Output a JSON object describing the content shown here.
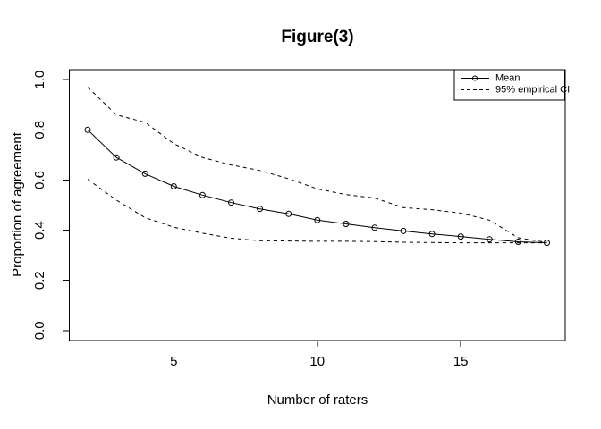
{
  "chart_data": {
    "type": "line",
    "title": "Figure(3)",
    "xlabel": "Number of raters",
    "ylabel": "Proportion of agreement",
    "x": [
      2,
      3,
      4,
      5,
      6,
      7,
      8,
      9,
      10,
      11,
      12,
      13,
      14,
      15,
      16,
      17,
      18
    ],
    "series": [
      {
        "name": "Mean",
        "line_style": "solid",
        "marker": "open-circle",
        "values": [
          0.8,
          0.69,
          0.625,
          0.575,
          0.54,
          0.51,
          0.485,
          0.465,
          0.44,
          0.425,
          0.41,
          0.397,
          0.385,
          0.375,
          0.364,
          0.354,
          0.35
        ]
      },
      {
        "name": "95% empirical CI upper bound",
        "line_style": "dashed",
        "marker": "none",
        "values": [
          0.97,
          0.86,
          0.83,
          0.745,
          0.69,
          0.66,
          0.638,
          0.605,
          0.565,
          0.542,
          0.528,
          0.49,
          0.482,
          0.468,
          0.44,
          0.37,
          0.351
        ]
      },
      {
        "name": "95% empirical CI lower bound",
        "line_style": "dashed",
        "marker": "none",
        "values": [
          0.603,
          0.52,
          0.45,
          0.412,
          0.388,
          0.368,
          0.358,
          0.357,
          0.356,
          0.356,
          0.355,
          0.352,
          0.351,
          0.35,
          0.35,
          0.35,
          0.35
        ]
      }
    ],
    "legend": {
      "position": "topright",
      "entries": [
        {
          "label": "Mean",
          "sample": "solid-line-open-circle"
        },
        {
          "label": "95% empirical CI",
          "sample": "dashed-line"
        }
      ]
    },
    "x_ticks": {
      "positions": [
        5,
        10,
        15
      ],
      "labels": [
        "5",
        "10",
        "15"
      ]
    },
    "y_ticks": {
      "positions": [
        0,
        0.2,
        0.4,
        0.6,
        0.8,
        1.0
      ],
      "labels": [
        "0.0",
        "0.2",
        "0.4",
        "0.6",
        "0.8",
        "1.0"
      ]
    },
    "xlim": [
      1.36,
      18.64
    ],
    "ylim": [
      -0.04,
      1.04
    ],
    "grid": false,
    "colors": {
      "foreground": "#000000",
      "background": "#ffffff"
    }
  }
}
